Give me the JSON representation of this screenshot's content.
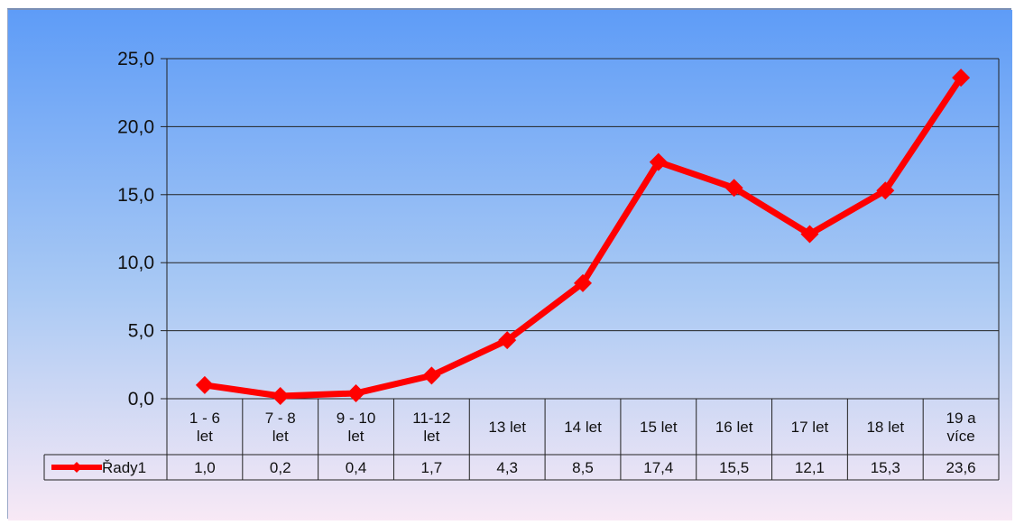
{
  "chart_data": {
    "type": "line",
    "title": "",
    "xlabel": "",
    "ylabel": "",
    "categories": [
      [
        "1 - 6",
        "let"
      ],
      [
        "7 - 8",
        "let"
      ],
      [
        "9 - 10",
        "let"
      ],
      [
        "11-12",
        "let"
      ],
      [
        "13 let"
      ],
      [
        "14 let"
      ],
      [
        "15 let"
      ],
      [
        "16 let"
      ],
      [
        "17 let"
      ],
      [
        "18 let"
      ],
      [
        "19 a",
        "více"
      ]
    ],
    "series": [
      {
        "name": "Řady1",
        "values": [
          1.0,
          0.2,
          0.4,
          1.7,
          4.3,
          8.5,
          17.4,
          15.5,
          12.1,
          15.3,
          23.6
        ],
        "value_labels": [
          "1,0",
          "0,2",
          "0,4",
          "1,7",
          "4,3",
          "8,5",
          "17,4",
          "15,5",
          "12,1",
          "15,3",
          "23,6"
        ],
        "color": "#ff0000"
      }
    ],
    "ylim": [
      0,
      25
    ],
    "yticks": [
      0,
      5,
      10,
      15,
      20,
      25
    ],
    "ytick_labels": [
      "0,0",
      "5,0",
      "10,0",
      "15,0",
      "20,0",
      "25,0"
    ],
    "grid": true,
    "legend": "data-table",
    "colors": {
      "background_top": "#5e9cf7",
      "background_bottom": "#f8e9f5",
      "gridline": "#222222",
      "line": "#ff0000"
    }
  }
}
